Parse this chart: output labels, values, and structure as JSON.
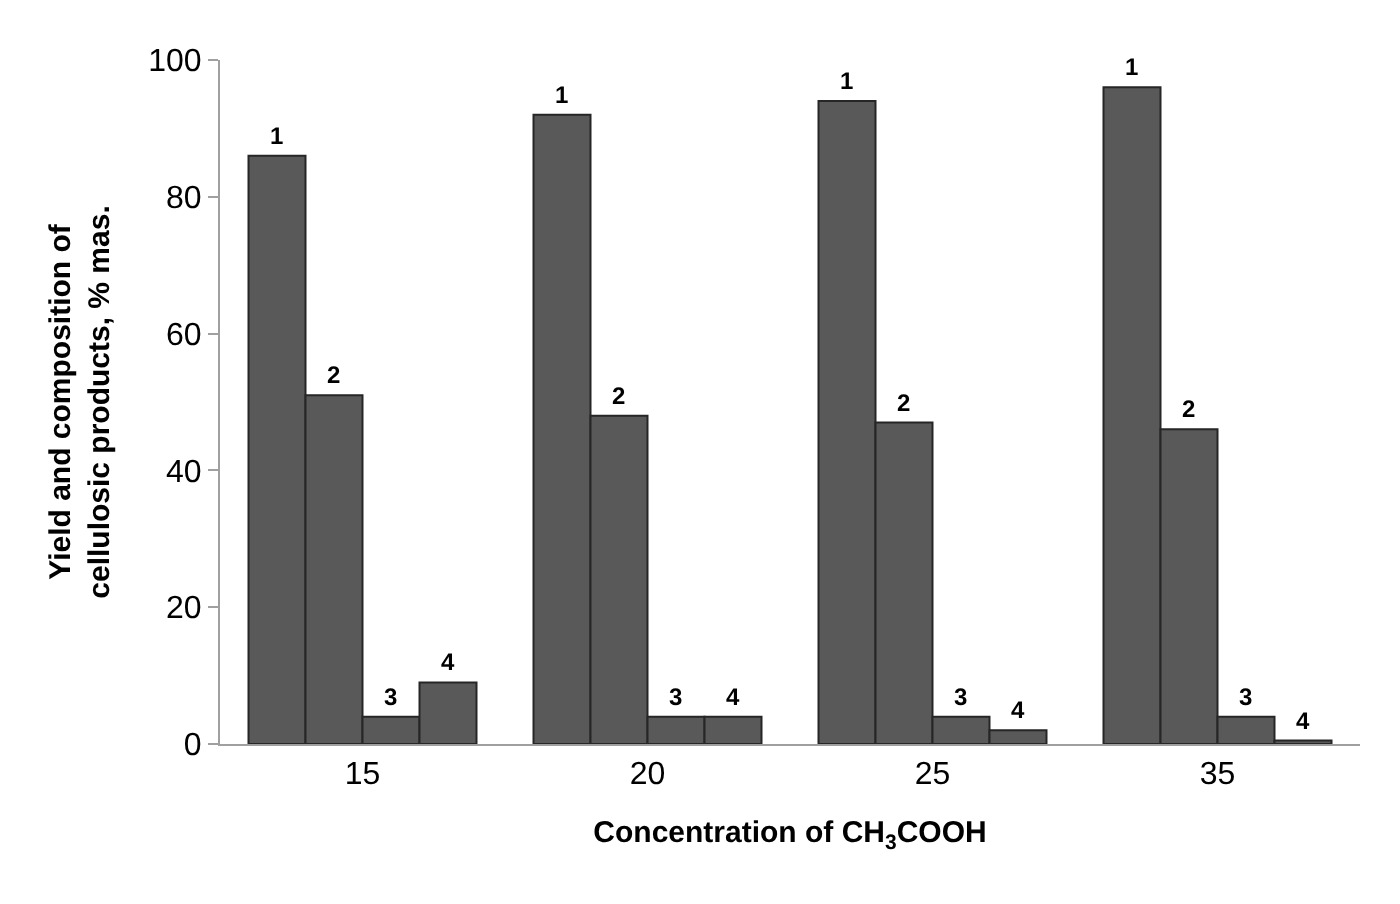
{
  "chart_data": {
    "type": "bar",
    "categories": [
      "15",
      "20",
      "25",
      "35"
    ],
    "series": [
      {
        "name": "1",
        "color": "#595959",
        "values": [
          86,
          92,
          94,
          96
        ]
      },
      {
        "name": "2",
        "color": "#595959",
        "values": [
          51,
          48,
          47,
          46
        ]
      },
      {
        "name": "3",
        "color": "#595959",
        "values": [
          4,
          4,
          4,
          4
        ]
      },
      {
        "name": "4",
        "color": "#595959",
        "values": [
          9,
          4,
          2,
          0.5
        ]
      }
    ],
    "xlabel": "Concentration of CH$_{3}$COOH",
    "ylabel": "Yield and composition of\ncellulosic products, % mas.",
    "ylim": [
      0,
      100
    ],
    "yticks": [
      0,
      20,
      40,
      60,
      80,
      100
    ],
    "legend": false
  }
}
